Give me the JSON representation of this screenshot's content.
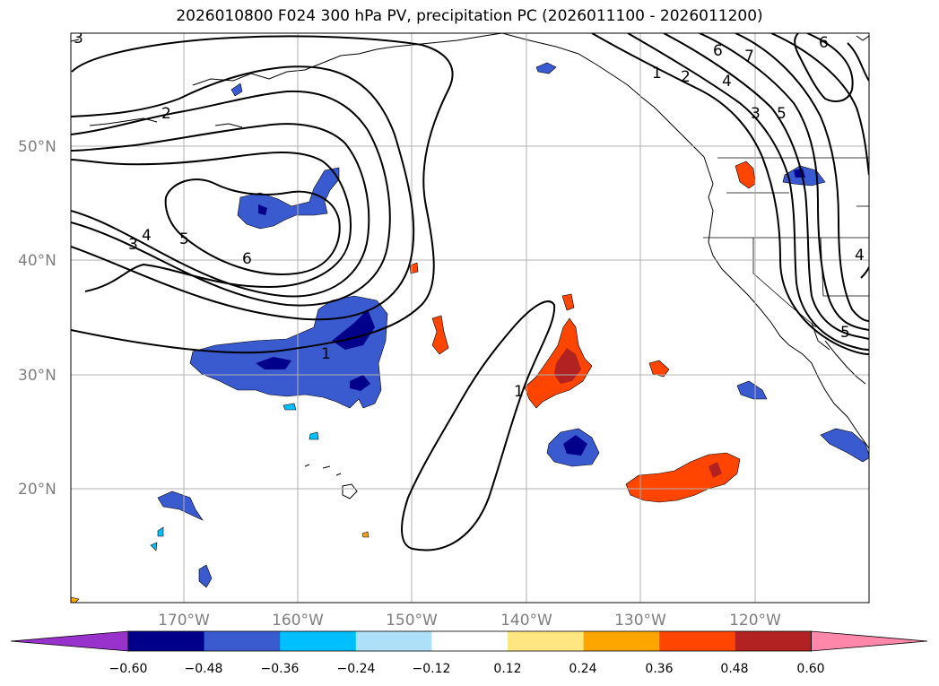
{
  "title": "2026010800 F024 300 hPa PV, precipitation PC (2026011100 - 2026011200)",
  "map": {
    "lat_labels": [
      {
        "value": 50,
        "text": "50°N"
      },
      {
        "value": 40,
        "text": "40°N"
      },
      {
        "value": 30,
        "text": "30°N"
      },
      {
        "value": 20,
        "text": "20°N"
      }
    ],
    "lon_labels": [
      {
        "value": -170,
        "text": "170°W"
      },
      {
        "value": -160,
        "text": "160°W"
      },
      {
        "value": -150,
        "text": "150°W"
      },
      {
        "value": -140,
        "text": "140°W"
      },
      {
        "value": -130,
        "text": "130°W"
      },
      {
        "value": -120,
        "text": "120°W"
      }
    ],
    "extent": {
      "lon_min": -180,
      "lon_max": -110,
      "lat_min": 10,
      "lat_max": 60
    },
    "pv_contour_labels": [
      "1",
      "2",
      "3",
      "4",
      "5",
      "6",
      "7"
    ]
  },
  "colorbar": {
    "colors": [
      "#9932cc",
      "#00008b",
      "#3a5bd0",
      "#00bfff",
      "#aee0fa",
      "#ffffff",
      "#ffe680",
      "#ffa500",
      "#ff4500",
      "#b22222",
      "#ff88aa"
    ],
    "tick_labels": [
      "−0.60",
      "−0.48",
      "−0.36",
      "−0.24",
      "−0.12",
      "0.12",
      "0.24",
      "0.36",
      "0.48",
      "0.60"
    ]
  }
}
